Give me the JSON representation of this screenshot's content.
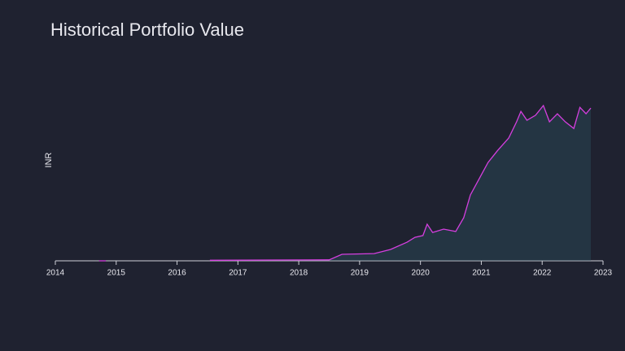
{
  "chart_data": {
    "type": "line",
    "title": "Historical Portfolio Value",
    "y_label": "INR",
    "x": [
      2014.72,
      2014.83,
      2015.5,
      2016.54,
      2018.5,
      2018.71,
      2019.24,
      2019.51,
      2019.78,
      2019.91,
      2020.04,
      2020.11,
      2020.2,
      2020.38,
      2020.58,
      2020.71,
      2020.82,
      2020.98,
      2021.11,
      2021.27,
      2021.45,
      2021.58,
      2021.65,
      2021.75,
      2021.89,
      2022.02,
      2022.12,
      2022.25,
      2022.38,
      2022.52,
      2022.62,
      2022.72,
      2022.8
    ],
    "series": [
      {
        "color": "#d63fe0",
        "values": [
          0,
          0,
          null,
          0.3,
          0.5,
          3.3,
          3.7,
          5.8,
          9.5,
          12,
          12.9,
          18.7,
          14.5,
          16.2,
          15,
          22,
          33.6,
          42.7,
          50.2,
          56.4,
          62.7,
          71,
          76.3,
          71.8,
          74.3,
          79.3,
          71,
          75.1,
          71,
          67.6,
          78.4,
          75.1,
          78
        ]
      }
    ],
    "xlim": [
      2014,
      2023
    ],
    "xticks": [
      2014,
      2015,
      2016,
      2017,
      2018,
      2019,
      2020,
      2021,
      2022,
      2023
    ],
    "ylim": [
      0,
      100
    ]
  }
}
